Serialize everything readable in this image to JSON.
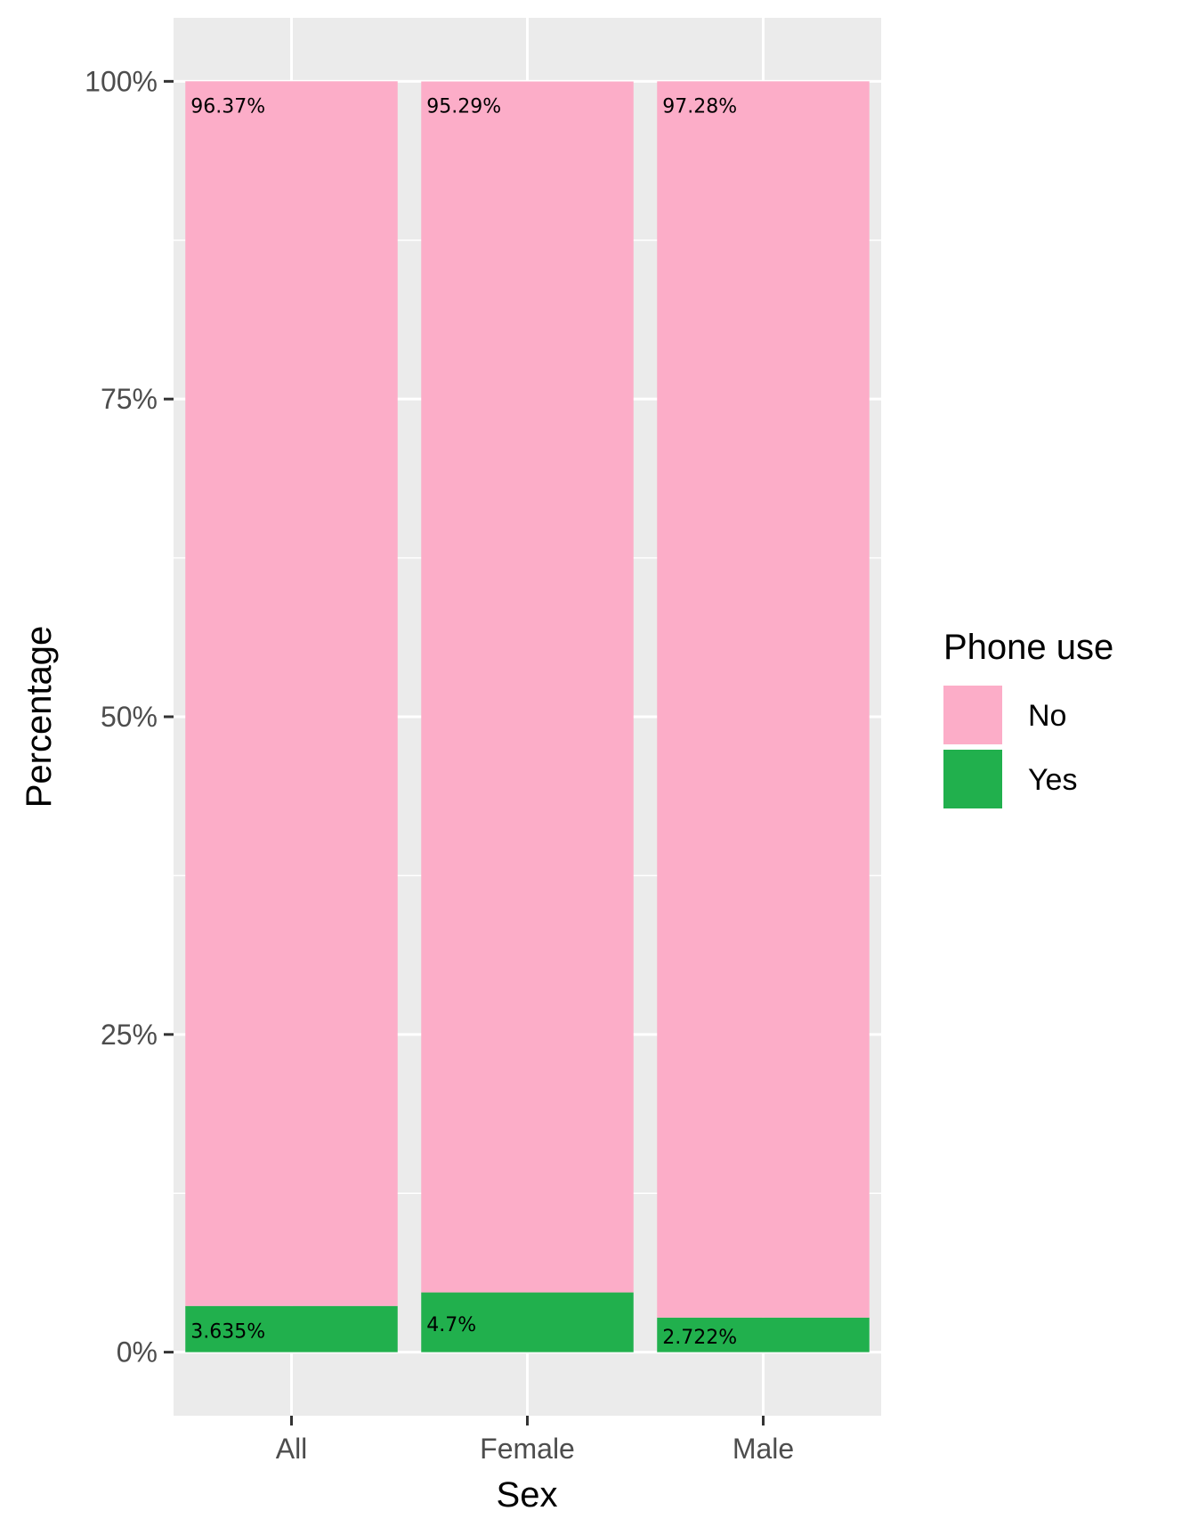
{
  "chart_data": {
    "type": "bar",
    "stacked": true,
    "categories": [
      "All",
      "Female",
      "Male"
    ],
    "series": [
      {
        "name": "No",
        "color": "#fcadc8",
        "values": [
          96.37,
          95.29,
          97.28
        ],
        "labels": [
          "96.37%",
          "95.29%",
          "97.28%"
        ]
      },
      {
        "name": "Yes",
        "color": "#21b04d",
        "values": [
          3.635,
          4.7,
          2.722
        ],
        "labels": [
          "3.635%",
          "4.7%",
          "2.722%"
        ]
      }
    ],
    "xlabel": "Sex",
    "ylabel": "Percentage",
    "ylim": [
      -5,
      105
    ],
    "yticks": [
      0,
      25,
      50,
      75,
      100
    ],
    "ytick_labels": [
      "0%",
      "25%",
      "50%",
      "75%",
      "100%"
    ],
    "legend": {
      "title": "Phone use",
      "entries": [
        "No",
        "Yes"
      ],
      "placement": "right"
    },
    "grid": true,
    "panel_background": "#ebebeb"
  }
}
